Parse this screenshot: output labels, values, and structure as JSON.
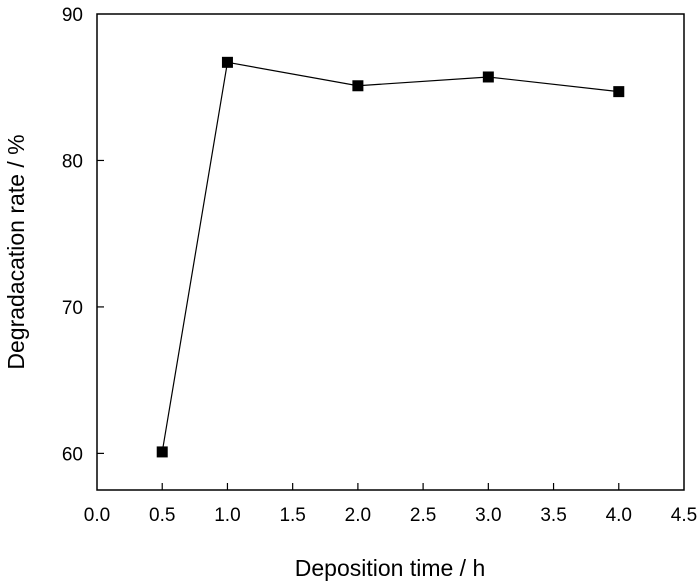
{
  "chart_data": {
    "type": "line",
    "title": "",
    "xlabel": "Deposition time / h",
    "ylabel": "Degradacation rate / %",
    "xlim": [
      0.0,
      4.5
    ],
    "ylim": [
      57.5,
      90
    ],
    "xticks": [
      "0.0",
      "0.5",
      "1.0",
      "1.5",
      "2.0",
      "2.5",
      "3.0",
      "3.5",
      "4.0",
      "4.5"
    ],
    "yticks": [
      "60",
      "70",
      "80",
      "90"
    ],
    "grid": false,
    "legend": "none",
    "series": [
      {
        "x": [
          0.5,
          1.0,
          2.0,
          3.0,
          4.0
        ],
        "y": [
          60.1,
          86.7,
          85.1,
          85.7,
          84.7
        ],
        "marker": "square",
        "color": "#000000"
      }
    ]
  }
}
